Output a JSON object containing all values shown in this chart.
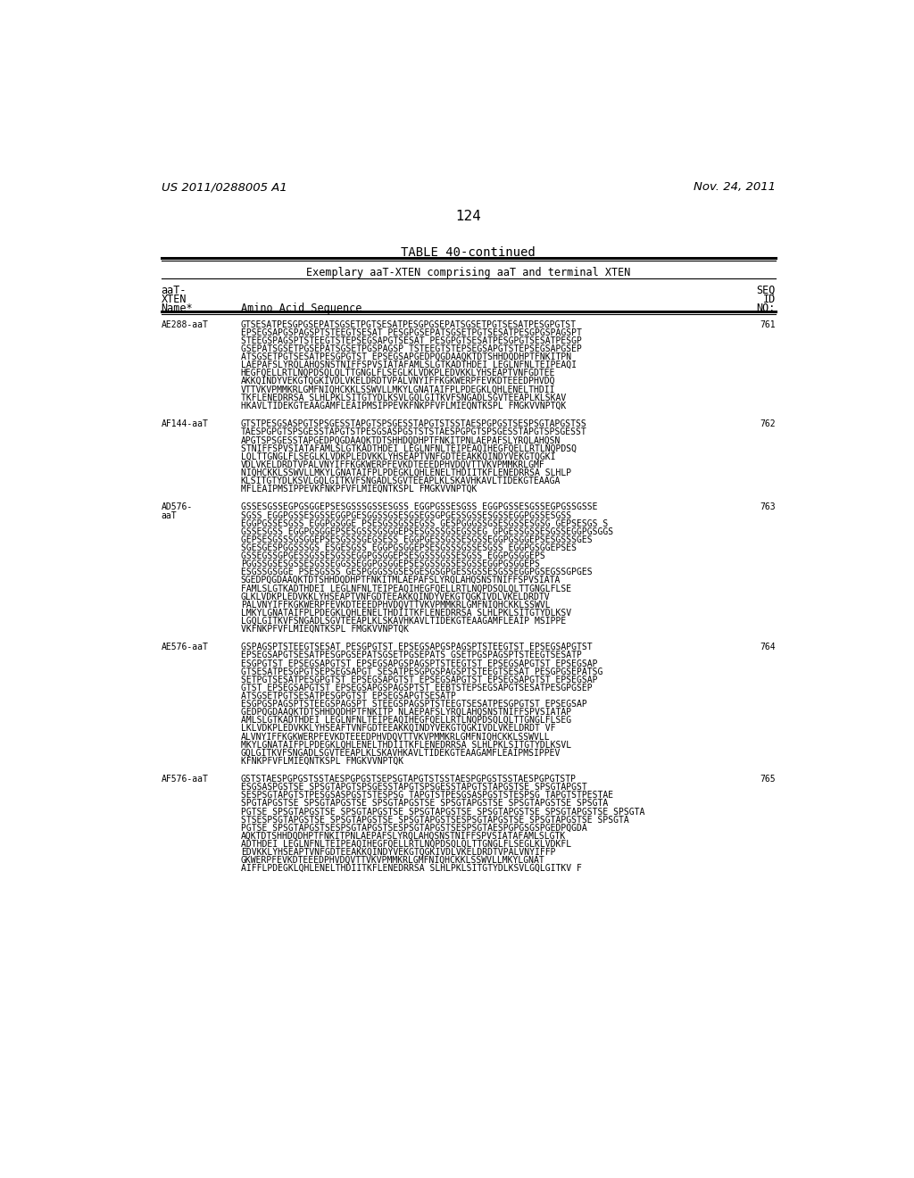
{
  "header_left": "US 2011/0288005 A1",
  "header_right": "Nov. 24, 2011",
  "page_number": "124",
  "table_title": "TABLE 40-continued",
  "table_subtitle": "Exemplary aaT-XTEN comprising aaT and terminal XTEN",
  "col1_header_line1": "aaT-",
  "col1_header_line2": "XTEN",
  "col1_header_line3": "Name*",
  "col2_header": "Amino Acid Sequence",
  "col3_header_line1": "SEQ",
  "col3_header_line2": "ID",
  "col3_header_line3": "NO:",
  "seq_data": [
    {
      "name": "AE288-aaT",
      "name_multiline": false,
      "seq_id": "761",
      "lines": [
        "GTSESATPESGPGSEPATSGSETPGTSESATPESGPGSEPATSGSETPGTSESATPESGPGTST",
        "EPSEGSAPGSPAGSPTSTEEGTSESAT PESGPGSEPATSGSETPGTSESATPESGPGSPAGSPT",
        "STEEGSPAGSPTSTEEGTSTEPSEGSAPGTSESAT PESGPGTSESATPESGPGTSESATPESGP",
        "GSEPATSGSETPGSEPATSGSETPGSPAGSP TSTEEGTSTEPSEGSAPGTSTEPSEGSAPGSEP",
        "ATSGSETPGTSESATPESGPGTST EPSEGSAPGEDPQGDAAQKTDTSHHDQDHPTFNKITPN",
        "LAEPAFSLYRQLAHQSNSTNIFFSPVSIATAFAMLSLGTKADTHDEI LEGLNFNLTEIPEAQI",
        "HEGFQELLRTLNQPDSQLQLTTGNGLFLSEGLKLVDKPLEDVKKLYHSEAPTVNFGDTEE",
        "AKKQINDYVEKGTQGKIVDLVKELDRDTVPALVNYIFFKGKWERPFEVKDTEEEDPHVDQ",
        "VTTVKVPMMKRLGMFNIQHCKKLSSWVLLMKYLGNATAIFPLPDEGKLQHLENELTHDII",
        "TKFLENEDRRSA SLHLPKLSITGTYDLKSVLGQLGITKVFSNGADLSGVTEEAPLKLSKAV",
        "HKAVLTIDEKGTEAAGAMFLEAIPMSIPPEVKFNKPFVFLMIEQNTKSPL FMGKVVNPTQK"
      ]
    },
    {
      "name": "AF144-aaT",
      "name_multiline": false,
      "seq_id": "762",
      "lines": [
        "GTSTPESGSASPGTSPSGESSTAPGTSPSGESSTAPGTSTSSTAESPGPGSTSESPSGTAPGSTSS",
        "TAESPGPGTSPSGESSTAPGTSTPESGSASPGSTSTSTAESPGPGTSPSGESSTAPGTSPSGESST",
        "APGTSPSGESSTAPGEDPQGDAAQKTDTSHHDQDHPTFNKITPNLAEPAFSLYRQLAHQSN",
        "STNIFFSPVSIATAFAMLSLGTKADTHDEI LEGLNFNLTEIPEAQIHEGFQELLRTLNQPDSQ",
        "LQLTTGNGLFLSEGLKLVDKPLEDVKKLYHSEAPTVNFGDTEEAKKQINDYVEKGTQGKI",
        "VDLVKELDRDTVPALVNYIFFKGKWERPFEVKDTEEEDPHVDQVTTVKVPMMKRLGMF",
        "NIQHCKKLSSWVLLMKYLGNATAIFPLPDEGKLQHLENELTHDIITKFLENEDRRSA SLHLP",
        "KLSITGTYDLKSVLGQLGITKVFSNGADLSGVTEEAPLKLSKAVHKAVLTIDEKGTEAAGA",
        "MFLEAIPMSIPPEVKFNKPFVFLMIEQNTKSPL FMGKVVNPTQK"
      ]
    },
    {
      "name": "AD576-",
      "name_line2": "aaT",
      "name_multiline": true,
      "seq_id": "763",
      "lines": [
        "GSSESGSSEGPGSGGEPSESGSSSGSSESGSS EGGPGSSESGSS EGGPGSSESGSSEGPGSSGSSE",
        "SGSS EGGPGSSESGSSEGGPGESGGSSGSESGSEGSGPGESSGSSESGSSEGGPGSSESGSS",
        "EGGPGSSESGSS EGGPGSGGE PSESGSSGSSEGSS GESPGGGSSGSESGSSESGSG GEPSESGS S",
        "GSSESGSS EGGPGSGGEPSESGSSSGSGGEPSESGSSSGSEGSSEG GPGESSGSSESGSSEGGPGSGGS",
        "GEPSESGSSSGSGGEPSESGSSSGEGSESS EGGPGESSGSSESGSSEGGPGSGGEPSESGSSSGES",
        "SGESGESPGGSSSGS ESGESGSS EGGPGSGGEPSESGSSSGSSESGSS EGGPGSGGEPSES",
        "GSSEGSSGPGESSGSSESGSSEGGPGSGGEPSESGSSSGSSESGSS EGGPGSGGEPS",
        "PGGSSGSESGSSESGSSEGGSSEGGPGSGGEPSESGSSGSSESGSSEGGPGSGGEPS",
        "ESGSSGSGGE PSESGSSS GESPGGGSSGSESGESGSGPGESSGSSESGSSEGGPGSEGSSGPGES",
        "SGEDPQGDAAQKTDTSHHDQDHPTFNKITMLAEPAFSLYRQLAHQSNSTNIFFSPVSIATA",
        "FAMLSLGTKADTHDEI LEGLNFNLTEIPEAQIHEGFQELLRTLNQPDSQLQLTTGNGLFLSE",
        "GLKLVDKPLEDVKKLYHSEAPTVNFGDTEEAKKQINDYVEKGTQGKIVDLVKELDRDTV",
        "PALVNYIFFKGKWERPFEVKDTEEEDPHVDQVTTVKVPMMKRLGMFNIQHCKKLSSWVL",
        "LMKYLGNATAIFPLPDEGKLQHLENELTHDIITKFLENEDRRSA SLHLPKLSITGTYDLKSV",
        "LGQLGITKVFSNGADLSGVTEEAPLKLSKAVHKAVLTIDEKGTEAAGAMFLEAIP MSIPPE",
        "VKFNKPFVFLMIEQNTKSPL FMGKVVNPTQK"
      ]
    },
    {
      "name": "AE576-aaT",
      "name_multiline": false,
      "seq_id": "764",
      "lines": [
        "GSPAGSPTSTEEGTSESAT PESGPGTST EPSEGSAPGSPAGSPTSTEEGTST EPSEGSAPGTST",
        "EPSEGSAPGTSESATPESGPGSEPATSGSETPGSEPATS GSETPGSPAGSPTSTEEGTSESATP",
        "ESGPGTST EPSEGSAPGTST EPSEGSAPGSPAGSPTSTEEGTST EPSEGSAPGTST EPSEGSAP",
        "GTSESATPESGPGTSEPSEGSAPGT SESATPESGPGSPAGSPTSTEEGTSESAT PESGPGSEPATSG",
        "SETPGTSESATPESGPGTST EPSEGSAPGTST EPSEGSAPGTST EPSEGSAPGTST EPSEGSAP",
        "GTST EPSEGSAPGTST EPSEGSAPGSPAGSPTST EEBTSTEPSEGSAPGTSESATPESGPGSEP",
        "ATSGSETPGTSESATPESGPGTST EPSEGSAPGTSESATP",
        "ESGPGSPAGSPTSTEEGSPAGSPT STEEGSPAGSPTSTEEGTSESATPESGPGTST EPSEGSAP",
        "GEDPQGDAAQKTDTSHHDQDHPTFNKITP NLAEPAFSLYRQLAHQSNSTNIFFSPVSIATAP",
        "AMLSLGTKADTHDEI LEGLNFNLTEIPEAQIHEGFQELLRTLNQPDSQLQLTTGNGLFLSEG",
        "LKLVDKPLEDVKKLYHSEAFTVNFGDTEEAKKQINDYVEKGTQGKIVDLVKELDRDT VF",
        "ALVNYIFFKGKWERPFEVKDTEEEDPHVDQVTTVKVPMMKRLGMFNIQHCKKLSSWVLL",
        "MKYLGNATAIFPLPDEGKLQHLENELTHDIITKFLENEDRRSA SLHLPKLSITGTYDLKSVL",
        "GQLGITKVFSNGADLSGVTEEAPLKLSKAVHKAVLTIDEKGTEAAGAMFLEAIPMSIPPEV",
        "KFNKPFVFLMIEQNTKSPL FMGKVVNPTQK"
      ]
    },
    {
      "name": "AF576-aaT",
      "name_multiline": false,
      "seq_id": "765",
      "lines": [
        "GSTSTAESPGPGSTSSTAESPGPGSTSEPSGTAPGTSTSSTAESPGPGSTSSTAESPGPGTSTP",
        "ESGSASPGSTSE SPSGTAPGTSPSGESSTAPGTSPSGESSTAPGTSTAPGSTSE SPSGTAPGST",
        "SESPSGTAPGTSTPESGSASPGSTSTESPSG TAPGTSTPESGSASPGSTSTESPSG TAPGTSTPESTAE",
        "SPGTAPGSTSE SPSGTAPGSTSE SPSGTAPGSTSE SPSGTAPGSTSE SPSGTAPGSTSE SPSGTA",
        "PGTSE SPSGTAPGSTSE SPSGTAPGSTSE SPSGTAPGSTSE SPSGTAPGSTSE SPSGTAPGSTSE SPSGTA",
        "STSESPSGTAPGSTSE SPSGTAPGSTSE SPSGTAPGSTSESPSGTAPGSTSE SPSGTAPGSTSE SPSGTA",
        "PGTSE SPSGTAPGSTSESPSGTAPGSTSESPSGTAPGSTSESPSGTAESPGPGSGSPGEDPQGDA",
        "AQKTDTSHHDQDHPTFNKITPNLAEPAFSLYRQLAHQSNSTNIFFSPVSIATAFAMLSLGTK",
        "ADTHDEI LEGLNFNLTEIPEAQIHEGFQELLRTLNQPDSQLQLTTGNGLFLSEGLKLVDKFL",
        "EDVKKLYHSEAPTVNFGDTEEAKKQINDYVEKGTQGKIVDLVKELDRDTVPALVNYIFFP",
        "GKWERPFEVKDTEEEDPHVDQVTTVKVPMMKRLGMFNIQHCKKLSSWVLLMKYLGNAT",
        "AIFFLPDEGKLQHLENELTHDIITKFLENEDRRSA SLHLPKLSITGTYDLKSVLGQLGITKV F"
      ]
    }
  ],
  "bg_color": "#ffffff",
  "text_color": "#000000"
}
